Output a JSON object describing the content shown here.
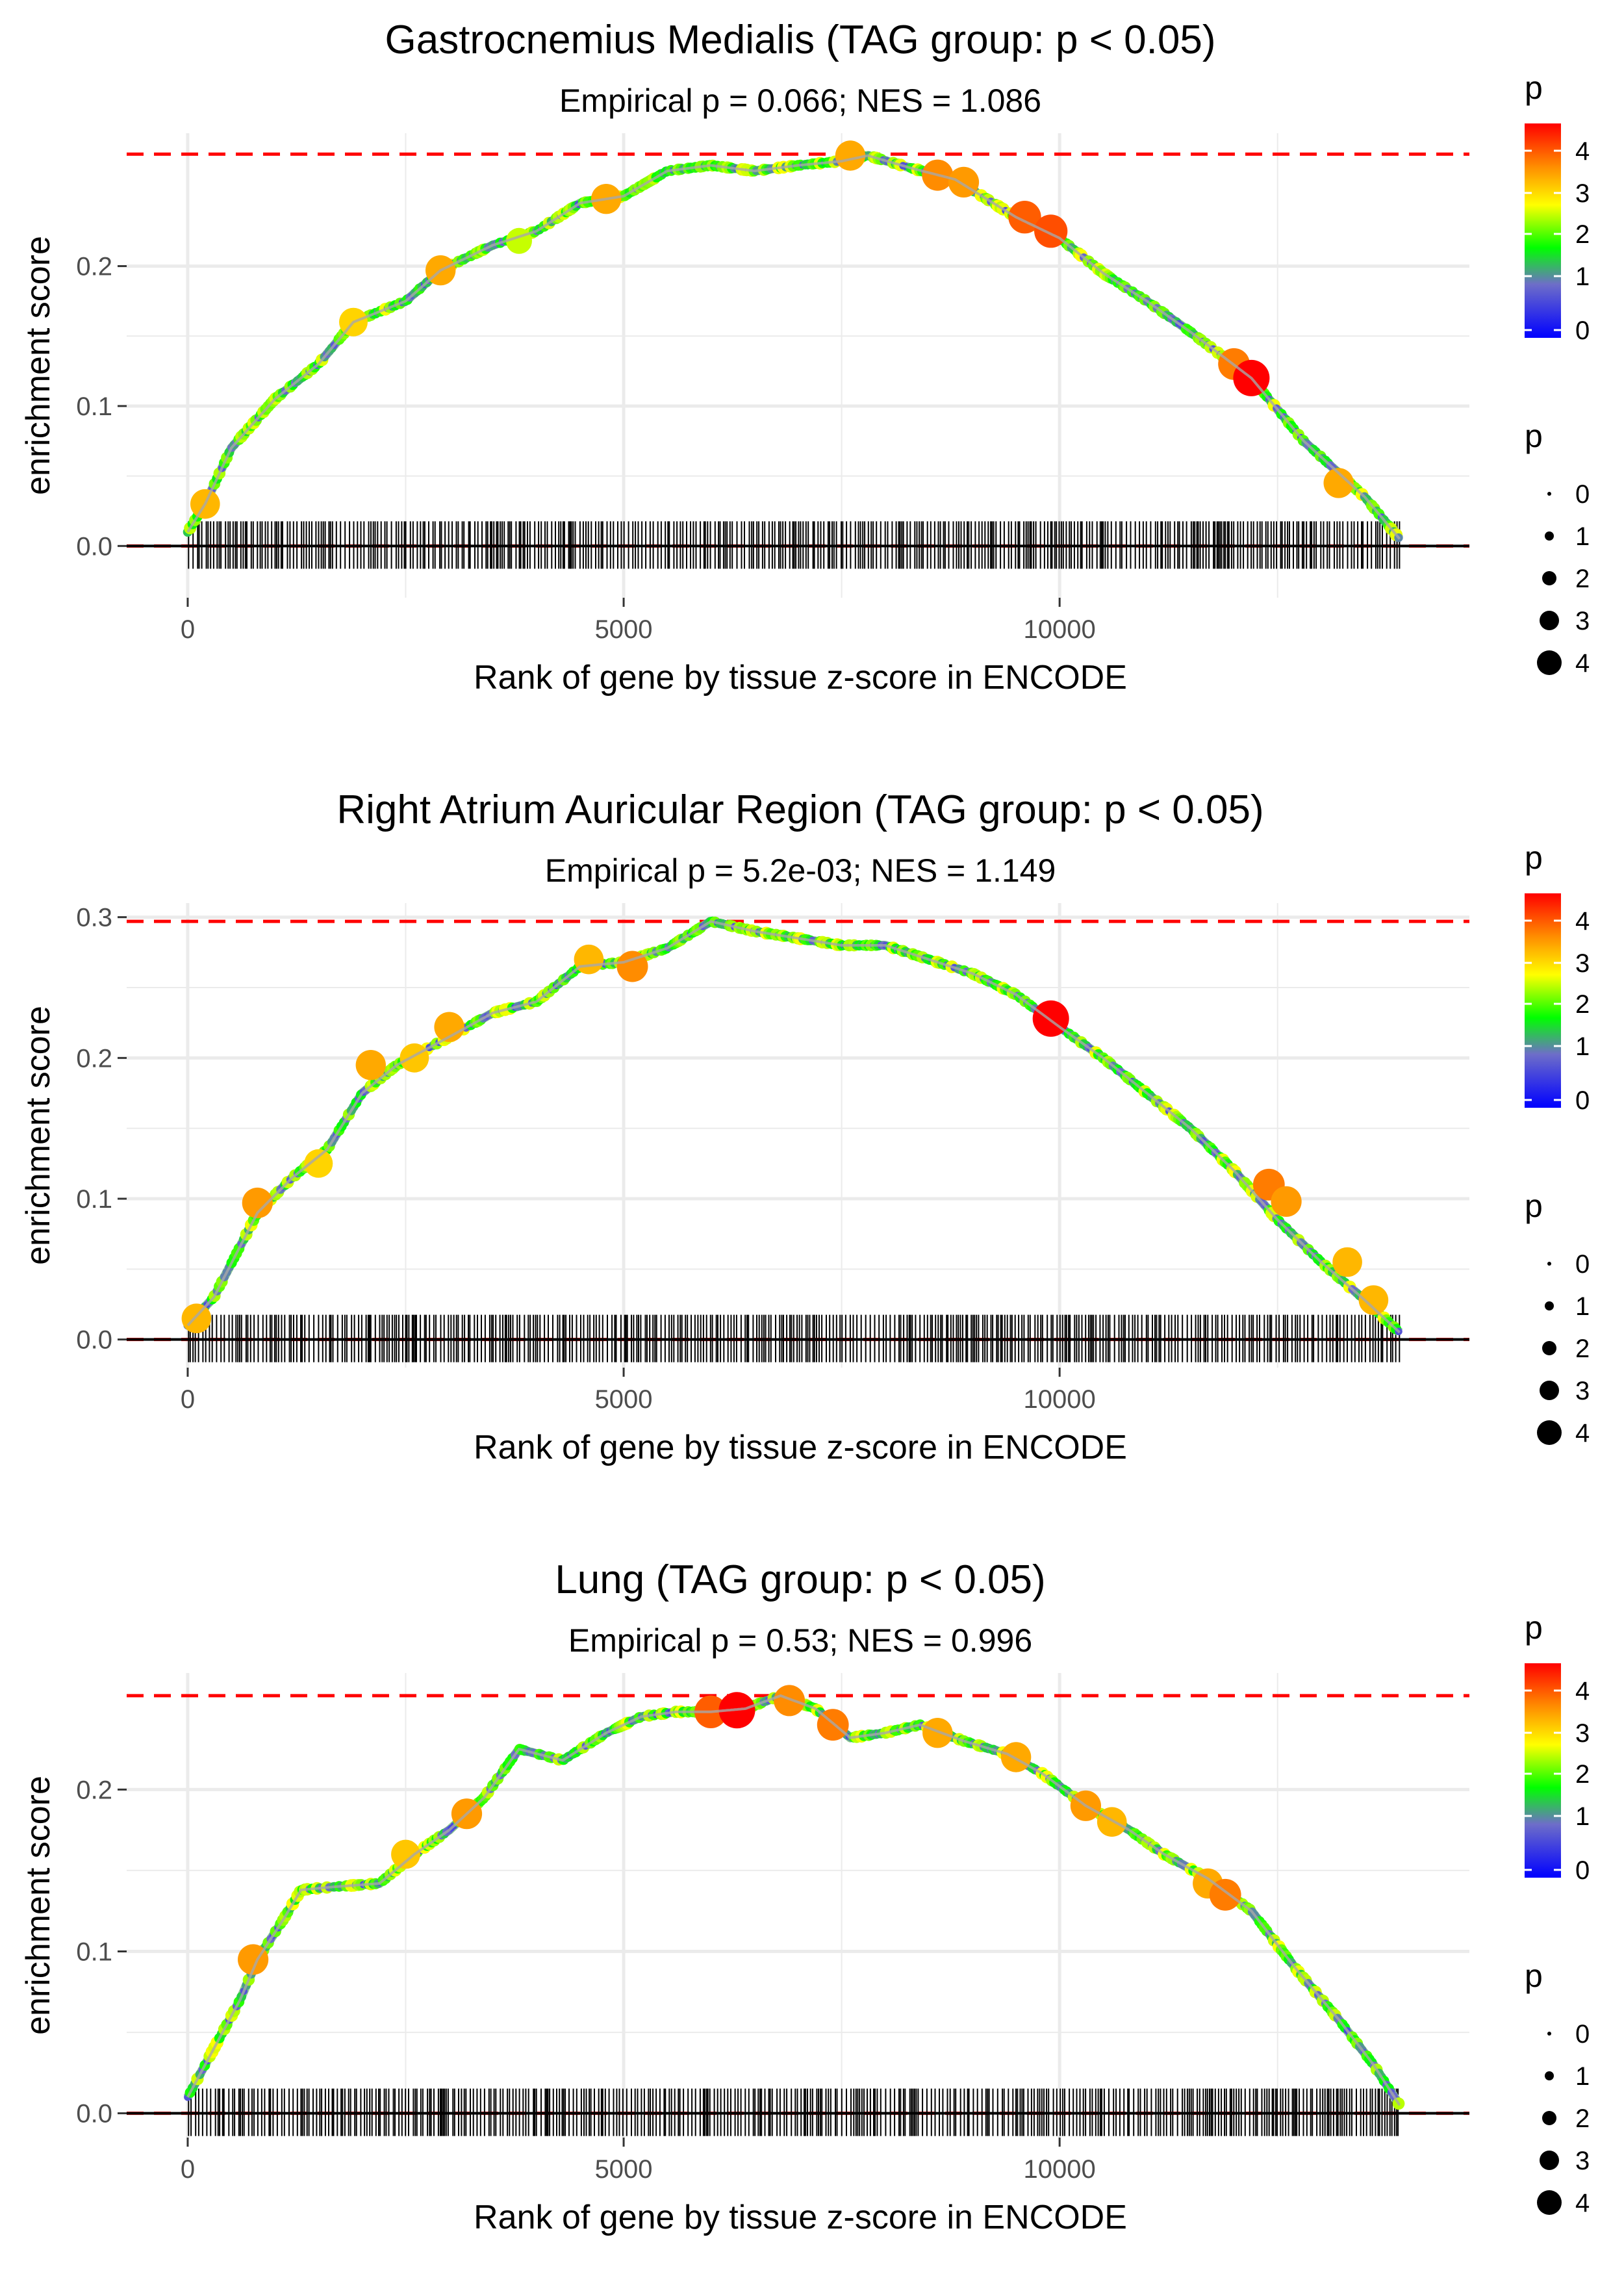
{
  "chart_data": [
    {
      "type": "line",
      "title": "Gastrocnemius Medialis (TAG group: p < 0.05)",
      "subtitle": "Empirical p = 0.066; NES = 1.086",
      "xlabel": "Rank of gene by tissue z-score in ENCODE",
      "ylabel": "enrichment score",
      "xlim": [
        -700,
        14700
      ],
      "ylim": [
        -0.037,
        0.295
      ],
      "x_ticks": [
        0,
        5000,
        10000
      ],
      "x_tick_labels": [
        "0",
        "5000",
        "10000"
      ],
      "y_ticks": [
        0.0,
        0.1,
        0.2
      ],
      "y_tick_labels": [
        "0.0",
        "0.1",
        "0.2"
      ],
      "max_es": 0.28,
      "x_end": 13900,
      "curve": [
        [
          0,
          0.01
        ],
        [
          200,
          0.03
        ],
        [
          500,
          0.07
        ],
        [
          1000,
          0.105
        ],
        [
          1500,
          0.13
        ],
        [
          1900,
          0.16
        ],
        [
          2500,
          0.175
        ],
        [
          2900,
          0.197
        ],
        [
          3500,
          0.215
        ],
        [
          4000,
          0.225
        ],
        [
          4500,
          0.245
        ],
        [
          5000,
          0.25
        ],
        [
          5500,
          0.268
        ],
        [
          6000,
          0.272
        ],
        [
          6500,
          0.268
        ],
        [
          7000,
          0.272
        ],
        [
          7500,
          0.275
        ],
        [
          7800,
          0.279
        ],
        [
          8300,
          0.27
        ],
        [
          8800,
          0.262
        ],
        [
          9500,
          0.235
        ],
        [
          10000,
          0.22
        ],
        [
          10500,
          0.195
        ],
        [
          11000,
          0.175
        ],
        [
          11500,
          0.153
        ],
        [
          12200,
          0.12
        ],
        [
          12800,
          0.075
        ],
        [
          13500,
          0.035
        ],
        [
          13900,
          0.005
        ]
      ],
      "highlights": [
        [
          200,
          0.03,
          3.2
        ],
        [
          1900,
          0.16,
          3.0
        ],
        [
          2900,
          0.197,
          3.3
        ],
        [
          3800,
          0.218,
          2.5
        ],
        [
          4800,
          0.248,
          3.3
        ],
        [
          7600,
          0.279,
          3.3
        ],
        [
          8600,
          0.265,
          3.5
        ],
        [
          8900,
          0.26,
          3.4
        ],
        [
          9600,
          0.235,
          3.8
        ],
        [
          9900,
          0.225,
          3.9
        ],
        [
          12000,
          0.13,
          3.6
        ],
        [
          12200,
          0.12,
          4.5
        ],
        [
          13200,
          0.045,
          3.3
        ]
      ],
      "legend": {
        "colorbar_title": "p",
        "colorbar_ticks": [
          "4",
          "3",
          "2",
          "1",
          "0"
        ],
        "size_title": "p",
        "size_labels": [
          "0",
          "1",
          "2",
          "3",
          "4"
        ]
      }
    },
    {
      "type": "line",
      "title": "Right Atrium Auricular Region (TAG group: p < 0.05)",
      "subtitle": "Empirical p = 5.2e-03; NES = 1.149",
      "xlabel": "Rank of gene by tissue z-score in ENCODE",
      "ylabel": "enrichment score",
      "xlim": [
        -700,
        14700
      ],
      "ylim": [
        -0.02,
        0.31
      ],
      "x_ticks": [
        0,
        5000,
        10000
      ],
      "x_tick_labels": [
        "0",
        "5000",
        "10000"
      ],
      "y_ticks": [
        0.0,
        0.1,
        0.2,
        0.3
      ],
      "y_tick_labels": [
        "0.0",
        "0.1",
        "0.2",
        "0.3"
      ],
      "max_es": 0.297,
      "x_end": 13900,
      "curve": [
        [
          0,
          0.01
        ],
        [
          300,
          0.03
        ],
        [
          800,
          0.09
        ],
        [
          1200,
          0.115
        ],
        [
          1600,
          0.135
        ],
        [
          2000,
          0.175
        ],
        [
          2400,
          0.195
        ],
        [
          3000,
          0.215
        ],
        [
          3500,
          0.232
        ],
        [
          4000,
          0.24
        ],
        [
          4500,
          0.265
        ],
        [
          5000,
          0.268
        ],
        [
          5500,
          0.278
        ],
        [
          6000,
          0.297
        ],
        [
          6500,
          0.29
        ],
        [
          7000,
          0.285
        ],
        [
          7500,
          0.28
        ],
        [
          8000,
          0.28
        ],
        [
          8500,
          0.27
        ],
        [
          9000,
          0.26
        ],
        [
          9500,
          0.245
        ],
        [
          10000,
          0.222
        ],
        [
          10500,
          0.2
        ],
        [
          11000,
          0.175
        ],
        [
          11500,
          0.15
        ],
        [
          12000,
          0.12
        ],
        [
          12500,
          0.085
        ],
        [
          13000,
          0.055
        ],
        [
          13500,
          0.028
        ],
        [
          13900,
          0.005
        ]
      ],
      "highlights": [
        [
          100,
          0.015,
          3.2
        ],
        [
          800,
          0.097,
          3.4
        ],
        [
          1500,
          0.125,
          3.0
        ],
        [
          2100,
          0.195,
          3.3
        ],
        [
          2600,
          0.2,
          3.1
        ],
        [
          3000,
          0.222,
          3.3
        ],
        [
          4600,
          0.27,
          3.2
        ],
        [
          5100,
          0.265,
          3.5
        ],
        [
          9900,
          0.228,
          4.5
        ],
        [
          12400,
          0.11,
          3.6
        ],
        [
          12600,
          0.098,
          3.4
        ],
        [
          13300,
          0.055,
          3.2
        ],
        [
          13600,
          0.028,
          3.2
        ]
      ],
      "legend": {
        "colorbar_title": "p",
        "colorbar_ticks": [
          "4",
          "3",
          "2",
          "1",
          "0"
        ],
        "size_title": "p",
        "size_labels": [
          "0",
          "1",
          "2",
          "3",
          "4"
        ]
      }
    },
    {
      "type": "line",
      "title": "Lung (TAG group: p < 0.05)",
      "subtitle": "Empirical p = 0.53; NES = 0.996",
      "xlabel": "Rank of gene by tissue z-score in ENCODE",
      "ylabel": "enrichment score",
      "xlim": [
        -700,
        14700
      ],
      "ylim": [
        -0.015,
        0.272
      ],
      "x_ticks": [
        0,
        5000,
        10000
      ],
      "x_tick_labels": [
        "0",
        "5000",
        "10000"
      ],
      "y_ticks": [
        0.0,
        0.1,
        0.2
      ],
      "y_tick_labels": [
        "0.0",
        "0.1",
        "0.2"
      ],
      "max_es": 0.258,
      "x_end": 13900,
      "curve": [
        [
          0,
          0.01
        ],
        [
          300,
          0.04
        ],
        [
          600,
          0.07
        ],
        [
          800,
          0.095
        ],
        [
          1100,
          0.12
        ],
        [
          1300,
          0.138
        ],
        [
          1700,
          0.14
        ],
        [
          2200,
          0.142
        ],
        [
          2600,
          0.16
        ],
        [
          3000,
          0.175
        ],
        [
          3400,
          0.195
        ],
        [
          3800,
          0.225
        ],
        [
          4300,
          0.218
        ],
        [
          4800,
          0.235
        ],
        [
          5200,
          0.245
        ],
        [
          5600,
          0.248
        ],
        [
          6000,
          0.248
        ],
        [
          6400,
          0.25
        ],
        [
          6800,
          0.258
        ],
        [
          7200,
          0.25
        ],
        [
          7600,
          0.232
        ],
        [
          8000,
          0.235
        ],
        [
          8400,
          0.24
        ],
        [
          8900,
          0.23
        ],
        [
          9400,
          0.222
        ],
        [
          9800,
          0.21
        ],
        [
          10300,
          0.19
        ],
        [
          10800,
          0.175
        ],
        [
          11200,
          0.16
        ],
        [
          11700,
          0.145
        ],
        [
          12200,
          0.125
        ],
        [
          12700,
          0.09
        ],
        [
          13200,
          0.058
        ],
        [
          13600,
          0.03
        ],
        [
          13900,
          0.005
        ]
      ],
      "highlights": [
        [
          750,
          0.095,
          3.4
        ],
        [
          2500,
          0.16,
          3.1
        ],
        [
          3200,
          0.185,
          3.4
        ],
        [
          6000,
          0.248,
          3.8
        ],
        [
          6300,
          0.249,
          4.5
        ],
        [
          6900,
          0.255,
          3.5
        ],
        [
          7400,
          0.24,
          3.6
        ],
        [
          8600,
          0.235,
          3.3
        ],
        [
          9500,
          0.22,
          3.3
        ],
        [
          10300,
          0.19,
          3.4
        ],
        [
          10600,
          0.18,
          3.2
        ],
        [
          11700,
          0.142,
          3.3
        ],
        [
          11900,
          0.135,
          3.6
        ]
      ],
      "legend": {
        "colorbar_title": "p",
        "colorbar_ticks": [
          "4",
          "3",
          "2",
          "1",
          "0"
        ],
        "size_title": "p",
        "size_labels": [
          "0",
          "1",
          "2",
          "3",
          "4"
        ]
      }
    }
  ],
  "colors": {
    "reference_line": "#ff0000",
    "grid": "#ebebeb",
    "rug": "#000000",
    "axis_text": "#4d4d4d",
    "scale": [
      "#0000ff",
      "#6e6ec8",
      "#00ff00",
      "#ffff00",
      "#ff8c00",
      "#ff0000"
    ]
  }
}
